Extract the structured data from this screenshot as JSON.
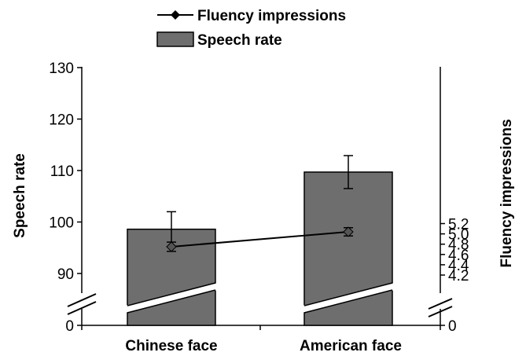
{
  "chart_data": {
    "type": "bar",
    "categories": [
      "Chinese face",
      "American face"
    ],
    "series": [
      {
        "name": "Speech rate",
        "kind": "bar",
        "axis": "left",
        "color": "#6e6e6e",
        "values": [
          98.6,
          109.7
        ],
        "error": [
          3.4,
          3.2
        ]
      },
      {
        "name": "Fluency impressions",
        "kind": "line",
        "axis": "right",
        "color": "#000000",
        "values": [
          4.75,
          5.04
        ],
        "error": [
          0.09,
          0.08
        ]
      }
    ],
    "y_left": {
      "label": "Speech rate",
      "ticks": [
        "0",
        "90",
        "100",
        "110",
        "120",
        "130"
      ],
      "range": [
        85,
        130
      ],
      "axis_break": true
    },
    "y_right": {
      "label": "Fluency impressions",
      "ticks": [
        "0",
        "4.2",
        "4.4",
        "4.6",
        "4.8",
        "5.0",
        "5.2"
      ],
      "range": [
        4.15,
        5.2
      ],
      "axis_break": true
    },
    "legend": {
      "placement": "top",
      "entries": [
        "Fluency impressions",
        "Speech rate"
      ]
    }
  }
}
